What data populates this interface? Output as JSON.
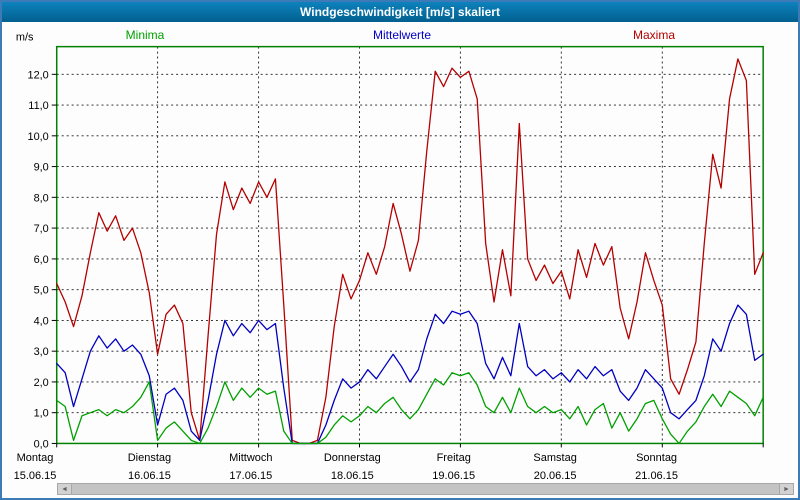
{
  "header": {
    "title": "Windgeschwindigkeit [m/s] skaliert"
  },
  "y_axis": {
    "unit": "m/s",
    "min": 0,
    "max": 12,
    "step": 1,
    "tick_labels": [
      "0,0",
      "1,0",
      "2,0",
      "3,0",
      "4,0",
      "5,0",
      "6,0",
      "7,0",
      "8,0",
      "9,0",
      "10,0",
      "11,0",
      "12,0"
    ]
  },
  "x_axis": {
    "days": [
      {
        "name": "Montag",
        "date": "15.06.15"
      },
      {
        "name": "Dienstag",
        "date": "16.06.15"
      },
      {
        "name": "Mittwoch",
        "date": "17.06.15"
      },
      {
        "name": "Donnerstag",
        "date": "18.06.15"
      },
      {
        "name": "Freitag",
        "date": "19.06.15"
      },
      {
        "name": "Samstag",
        "date": "20.06.15"
      },
      {
        "name": "Sonntag",
        "date": "21.06.15"
      }
    ]
  },
  "scrollbar": {
    "left_arrow": "◄",
    "right_arrow": "►"
  },
  "chart_data": {
    "type": "line",
    "title": "Windgeschwindigkeit [m/s] skaliert",
    "ylabel": "m/s",
    "ylim": [
      0,
      12.9
    ],
    "grid": true,
    "legend_position": "top",
    "x_range_hours": [
      0,
      168
    ],
    "x_hours_step": 2,
    "x_categories_days": [
      "Montag 15.06.15",
      "Dienstag 16.06.15",
      "Mittwoch 17.06.15",
      "Donnerstag 18.06.15",
      "Freitag 19.06.15",
      "Samstag 20.06.15",
      "Sonntag 21.06.15"
    ],
    "series": [
      {
        "name": "Minima",
        "color": "#00a000",
        "values": [
          1.4,
          1.2,
          0.1,
          0.9,
          1.0,
          1.1,
          0.9,
          1.1,
          1.0,
          1.2,
          1.5,
          2.0,
          0.1,
          0.5,
          0.7,
          0.4,
          0.1,
          0.0,
          0.5,
          1.2,
          2.0,
          1.4,
          1.8,
          1.5,
          1.8,
          1.6,
          1.7,
          0.4,
          0.0,
          0.0,
          0.0,
          0.0,
          0.2,
          0.6,
          0.9,
          0.7,
          0.9,
          1.2,
          1.0,
          1.3,
          1.5,
          1.1,
          0.8,
          1.1,
          1.6,
          2.1,
          1.9,
          2.3,
          2.2,
          2.3,
          1.9,
          1.2,
          1.0,
          1.5,
          1.0,
          1.8,
          1.2,
          1.0,
          1.2,
          1.0,
          1.1,
          0.8,
          1.2,
          0.6,
          1.1,
          1.3,
          0.5,
          1.0,
          0.4,
          0.8,
          1.3,
          1.4,
          0.8,
          0.3,
          0.0,
          0.4,
          0.7,
          1.2,
          1.6,
          1.2,
          1.7,
          1.5,
          1.3,
          0.9,
          1.5
        ]
      },
      {
        "name": "Mittelwerte",
        "color": "#0000c0",
        "values": [
          2.6,
          2.3,
          1.2,
          2.1,
          3.0,
          3.5,
          3.1,
          3.4,
          3.0,
          3.2,
          2.9,
          2.2,
          0.6,
          1.6,
          1.8,
          1.4,
          0.4,
          0.1,
          1.4,
          2.9,
          4.0,
          3.5,
          3.9,
          3.6,
          4.0,
          3.7,
          3.9,
          1.8,
          0.0,
          0.0,
          0.0,
          0.0,
          0.6,
          1.4,
          2.1,
          1.8,
          2.0,
          2.4,
          2.1,
          2.5,
          2.9,
          2.5,
          2.0,
          2.4,
          3.4,
          4.2,
          3.9,
          4.3,
          4.2,
          4.3,
          3.9,
          2.6,
          2.1,
          2.8,
          2.2,
          3.9,
          2.5,
          2.2,
          2.4,
          2.1,
          2.3,
          2.0,
          2.4,
          2.1,
          2.5,
          2.2,
          2.4,
          1.7,
          1.4,
          1.8,
          2.4,
          2.1,
          1.8,
          1.0,
          0.8,
          1.1,
          1.4,
          2.2,
          3.4,
          3.0,
          3.9,
          4.5,
          4.2,
          2.7,
          2.9
        ]
      },
      {
        "name": "Maxima",
        "color": "#b40000",
        "values": [
          5.2,
          4.6,
          3.8,
          4.8,
          6.2,
          7.5,
          6.9,
          7.4,
          6.6,
          7.0,
          6.2,
          4.9,
          2.9,
          4.2,
          4.5,
          3.9,
          1.0,
          0.1,
          3.5,
          6.8,
          8.5,
          7.6,
          8.3,
          7.8,
          8.5,
          8.0,
          8.6,
          4.5,
          0.1,
          0.0,
          0.0,
          0.1,
          1.5,
          3.8,
          5.5,
          4.7,
          5.3,
          6.2,
          5.5,
          6.4,
          7.8,
          6.8,
          5.6,
          6.6,
          9.5,
          12.1,
          11.6,
          12.2,
          11.9,
          12.1,
          11.2,
          6.5,
          4.6,
          6.3,
          4.8,
          10.4,
          6.0,
          5.3,
          5.8,
          5.2,
          5.6,
          4.7,
          6.3,
          5.4,
          6.5,
          5.8,
          6.4,
          4.4,
          3.4,
          4.6,
          6.2,
          5.3,
          4.5,
          2.1,
          1.6,
          2.4,
          3.3,
          6.5,
          9.4,
          8.3,
          11.2,
          12.5,
          11.8,
          5.5,
          6.2
        ]
      }
    ]
  }
}
